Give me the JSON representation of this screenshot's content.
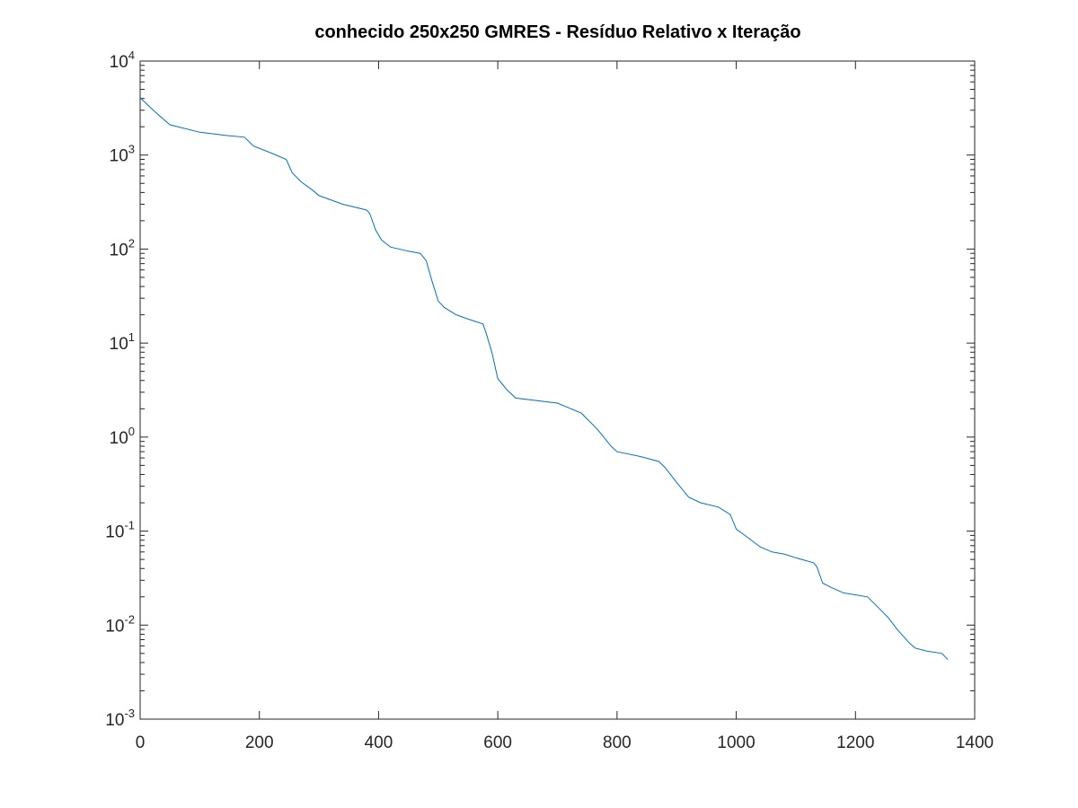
{
  "chart_data": {
    "type": "line",
    "title": "conhecido 250x250 GMRES - Resíduo Relativo x Iteração",
    "xlabel": "",
    "ylabel": "",
    "xlim": [
      0,
      1400
    ],
    "ylim": [
      0.001,
      10000
    ],
    "yscale": "log",
    "grid": false,
    "legend": false,
    "x_ticks": [
      {
        "value": 0,
        "label": "0"
      },
      {
        "value": 200,
        "label": "200"
      },
      {
        "value": 400,
        "label": "400"
      },
      {
        "value": 600,
        "label": "600"
      },
      {
        "value": 800,
        "label": "800"
      },
      {
        "value": 1000,
        "label": "1000"
      },
      {
        "value": 1200,
        "label": "1200"
      },
      {
        "value": 1400,
        "label": "1400"
      }
    ],
    "y_ticks": [
      {
        "value": 10000,
        "base": "10",
        "exp": "4"
      },
      {
        "value": 1000,
        "base": "10",
        "exp": "3"
      },
      {
        "value": 100,
        "base": "10",
        "exp": "2"
      },
      {
        "value": 10,
        "base": "10",
        "exp": "1"
      },
      {
        "value": 1,
        "base": "10",
        "exp": "0"
      },
      {
        "value": 0.1,
        "base": "10",
        "exp": "-1"
      },
      {
        "value": 0.01,
        "base": "10",
        "exp": "-2"
      },
      {
        "value": 0.001,
        "base": "10",
        "exp": "-3"
      }
    ],
    "series": [
      {
        "color": "#0072bd",
        "x": [
          0,
          5,
          15,
          30,
          50,
          100,
          150,
          175,
          190,
          220,
          245,
          255,
          270,
          290,
          300,
          340,
          380,
          385,
          395,
          405,
          420,
          450,
          470,
          480,
          490,
          500,
          510,
          530,
          550,
          575,
          580,
          590,
          600,
          615,
          630,
          700,
          740,
          765,
          775,
          790,
          800,
          840,
          870,
          880,
          900,
          920,
          940,
          970,
          990,
          1000,
          1020,
          1040,
          1060,
          1080,
          1100,
          1130,
          1135,
          1145,
          1160,
          1180,
          1220,
          1240,
          1255,
          1270,
          1290,
          1300,
          1320,
          1345,
          1355
        ],
        "y": [
          4100,
          3800,
          3300,
          2700,
          2100,
          1750,
          1600,
          1550,
          1250,
          1050,
          900,
          650,
          520,
          420,
          370,
          300,
          260,
          240,
          160,
          125,
          105,
          95,
          90,
          75,
          45,
          28,
          24,
          20,
          18,
          16,
          13,
          8,
          4.2,
          3.2,
          2.6,
          2.3,
          1.8,
          1.25,
          1.05,
          0.8,
          0.7,
          0.62,
          0.55,
          0.48,
          0.33,
          0.23,
          0.2,
          0.18,
          0.15,
          0.105,
          0.085,
          0.068,
          0.06,
          0.057,
          0.052,
          0.046,
          0.042,
          0.028,
          0.025,
          0.022,
          0.02,
          0.015,
          0.012,
          0.009,
          0.0065,
          0.0057,
          0.0053,
          0.005,
          0.0043
        ]
      }
    ]
  }
}
